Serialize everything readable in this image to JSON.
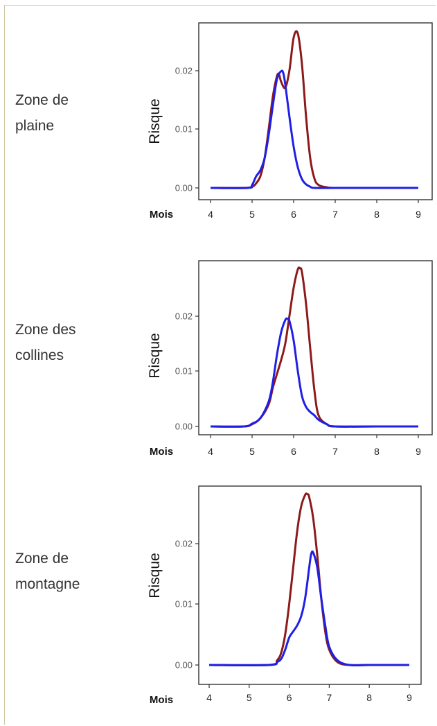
{
  "colors": {
    "series1": "#8b1a1a",
    "series2": "#1f1fe6",
    "axis": "#333333"
  },
  "chart_data": [
    {
      "type": "line",
      "zone_label": "Zone de\nplaine",
      "xlabel": "Mois",
      "ylabel": "Risque",
      "xlim": [
        4,
        9
      ],
      "ylim": [
        0,
        0.0265
      ],
      "xticks": [
        "4",
        "5",
        "6",
        "7",
        "8",
        "9"
      ],
      "yticks": [
        "0.00",
        "0.01",
        "0.02"
      ],
      "series": [
        {
          "color": "#8b1a1a",
          "x": [
            4.0,
            4.8,
            5.0,
            5.1,
            5.2,
            5.3,
            5.4,
            5.5,
            5.6,
            5.65,
            5.7,
            5.8,
            5.9,
            6.0,
            6.1,
            6.2,
            6.3,
            6.4,
            6.5,
            6.6,
            6.8,
            7.0,
            8.0,
            9.0
          ],
          "y": [
            0.0,
            0.0,
            0.0002,
            0.0008,
            0.002,
            0.005,
            0.01,
            0.0155,
            0.019,
            0.0192,
            0.018,
            0.017,
            0.02,
            0.0255,
            0.0262,
            0.021,
            0.012,
            0.005,
            0.0016,
            0.0005,
            0.0001,
            0.0,
            0.0,
            0.0
          ]
        },
        {
          "color": "#1f1fe6",
          "x": [
            4.0,
            4.9,
            5.0,
            5.1,
            5.2,
            5.3,
            5.4,
            5.5,
            5.6,
            5.7,
            5.75,
            5.8,
            5.9,
            6.0,
            6.1,
            6.2,
            6.3,
            6.4,
            6.5,
            7.0,
            8.0,
            9.0
          ],
          "y": [
            0.0,
            0.0,
            0.0005,
            0.002,
            0.003,
            0.005,
            0.009,
            0.014,
            0.0185,
            0.0198,
            0.0195,
            0.0175,
            0.012,
            0.007,
            0.0035,
            0.0015,
            0.0006,
            0.0002,
            0.0,
            0.0,
            0.0,
            0.0
          ]
        }
      ]
    },
    {
      "type": "line",
      "zone_label": "Zone des\ncollines",
      "xlabel": "Mois",
      "ylabel": "Risque",
      "xlim": [
        4,
        9
      ],
      "ylim": [
        0,
        0.029
      ],
      "xticks": [
        "4",
        "5",
        "6",
        "7",
        "8",
        "9"
      ],
      "yticks": [
        "0.00",
        "0.01",
        "0.02"
      ],
      "series": [
        {
          "color": "#8b1a1a",
          "x": [
            4.0,
            4.8,
            5.0,
            5.2,
            5.4,
            5.5,
            5.6,
            5.7,
            5.8,
            5.9,
            6.0,
            6.1,
            6.15,
            6.2,
            6.3,
            6.4,
            6.5,
            6.6,
            6.8,
            7.0,
            8.0,
            9.0
          ],
          "y": [
            0.0,
            0.0,
            0.0004,
            0.0015,
            0.004,
            0.007,
            0.0095,
            0.012,
            0.015,
            0.02,
            0.025,
            0.0283,
            0.0285,
            0.0278,
            0.022,
            0.014,
            0.0065,
            0.002,
            0.0004,
            0.0,
            0.0,
            0.0
          ]
        },
        {
          "color": "#1f1fe6",
          "x": [
            4.0,
            4.8,
            5.0,
            5.2,
            5.4,
            5.5,
            5.6,
            5.7,
            5.8,
            5.85,
            5.9,
            6.0,
            6.1,
            6.2,
            6.3,
            6.4,
            6.5,
            6.6,
            6.8,
            7.0,
            8.0,
            9.0
          ],
          "y": [
            0.0,
            0.0,
            0.0005,
            0.0015,
            0.0045,
            0.008,
            0.013,
            0.017,
            0.0192,
            0.0194,
            0.019,
            0.0155,
            0.01,
            0.0055,
            0.0035,
            0.0026,
            0.002,
            0.0012,
            0.0004,
            0.0,
            0.0,
            0.0
          ]
        }
      ]
    },
    {
      "type": "line",
      "zone_label": "Zone de\nmontagne",
      "xlabel": "Mois",
      "ylabel": "Risque",
      "xlim": [
        4,
        9
      ],
      "ylim": [
        0,
        0.0285
      ],
      "xticks": [
        "4",
        "5",
        "6",
        "7",
        "8",
        "9"
      ],
      "yticks": [
        "0.00",
        "0.01",
        "0.02"
      ],
      "series": [
        {
          "color": "#8b1a1a",
          "x": [
            4.0,
            5.5,
            5.7,
            5.8,
            5.9,
            6.0,
            6.1,
            6.2,
            6.3,
            6.4,
            6.45,
            6.5,
            6.6,
            6.7,
            6.8,
            6.9,
            7.0,
            7.2,
            7.5,
            8.0,
            9.0
          ],
          "y": [
            0.0,
            0.0,
            0.0008,
            0.002,
            0.005,
            0.01,
            0.016,
            0.022,
            0.026,
            0.0279,
            0.028,
            0.0275,
            0.024,
            0.018,
            0.011,
            0.0055,
            0.0025,
            0.0005,
            0.0,
            0.0,
            0.0
          ]
        },
        {
          "color": "#1f1fe6",
          "x": [
            4.0,
            5.5,
            5.7,
            5.8,
            5.9,
            6.0,
            6.1,
            6.2,
            6.3,
            6.4,
            6.5,
            6.55,
            6.6,
            6.7,
            6.8,
            6.9,
            7.0,
            7.2,
            7.5,
            8.0,
            9.0
          ],
          "y": [
            0.0,
            0.0,
            0.0005,
            0.001,
            0.0025,
            0.0045,
            0.0055,
            0.0065,
            0.008,
            0.011,
            0.016,
            0.0182,
            0.0184,
            0.016,
            0.011,
            0.0065,
            0.003,
            0.0008,
            0.0,
            0.0,
            0.0
          ]
        }
      ]
    }
  ]
}
